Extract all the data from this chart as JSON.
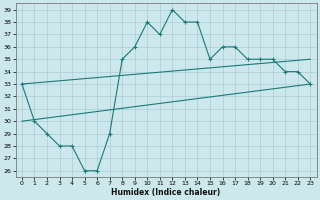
{
  "xlabel": "Humidex (Indice chaleur)",
  "bg_color": "#cce8ec",
  "grid_color": "#aacdd4",
  "line_color": "#1a7a78",
  "ylim": [
    25.5,
    39.5
  ],
  "xlim": [
    -0.5,
    23.5
  ],
  "yticks": [
    26,
    27,
    28,
    29,
    30,
    31,
    32,
    33,
    34,
    35,
    36,
    37,
    38,
    39
  ],
  "xticks": [
    0,
    1,
    2,
    3,
    4,
    5,
    6,
    7,
    8,
    9,
    10,
    11,
    12,
    13,
    14,
    15,
    16,
    17,
    18,
    19,
    20,
    21,
    22,
    23
  ],
  "line1_x": [
    0,
    1,
    2,
    3,
    4,
    5,
    6,
    7,
    8,
    9,
    10,
    11,
    12,
    13,
    14,
    15,
    16,
    17,
    18,
    19,
    20,
    21,
    22,
    23
  ],
  "line1_y": [
    33,
    30,
    29,
    28,
    28,
    26,
    26,
    29,
    35,
    36,
    38,
    37,
    39,
    38,
    38,
    35,
    36,
    36,
    35,
    35,
    35,
    34,
    34,
    33
  ],
  "line2_x": [
    0,
    23
  ],
  "line2_y": [
    33,
    35
  ],
  "line3_x": [
    0,
    23
  ],
  "line3_y": [
    30,
    33
  ]
}
